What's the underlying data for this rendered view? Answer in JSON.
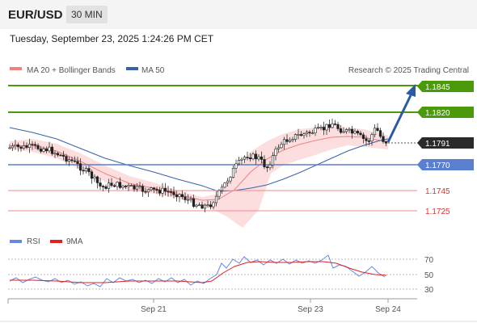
{
  "header": {
    "pair": "EUR/USD",
    "timeframe": "30 MIN"
  },
  "datetime": "Tuesday, September 23, 2025 1:24:26 PM CET",
  "legend": {
    "ma20": "MA 20 + Bollinger Bands",
    "ma50": "MA 50",
    "source": "Research © 2025 Trading Central"
  },
  "colors": {
    "green": "#4a9a0a",
    "blue": "#5b7fcf",
    "red": "#e06060",
    "ma20": "#f08080",
    "ma50": "#3a62a8",
    "band": "#fbd3d3",
    "rsi": "#6688dd",
    "rsi_ma": "#dd2222"
  },
  "levels": [
    {
      "value": "1.1845",
      "type": "resistance"
    },
    {
      "value": "1.1820",
      "type": "resistance"
    },
    {
      "value": "1.1791",
      "type": "current"
    },
    {
      "value": "1.1770",
      "type": "support"
    },
    {
      "value": "1.1745",
      "type": "support"
    },
    {
      "value": "1.1725",
      "type": "support"
    }
  ],
  "rsi_panel": {
    "rsi_label": "RSI",
    "ma_label": "9MA",
    "ticks": [
      "70",
      "50",
      "30"
    ]
  },
  "x_axis": {
    "labels": [
      "Sep 21",
      "Sep 23",
      "Sep 24"
    ]
  }
}
